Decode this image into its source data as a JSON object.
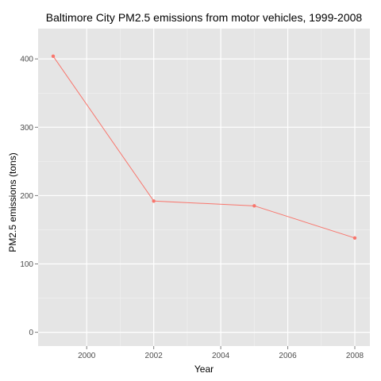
{
  "chart_data": {
    "type": "line",
    "title": "Baltimore City PM2.5 emissions from motor vehicles, 1999-2008",
    "xlabel": "Year",
    "ylabel": "PM2.5 emissions (tons)",
    "x": [
      1999,
      2002,
      2005,
      2008
    ],
    "series": [
      {
        "values": [
          404,
          192,
          185,
          138
        ],
        "color": "#f8766d"
      }
    ],
    "xticks": [
      2000,
      2002,
      2004,
      2006,
      2008
    ],
    "xtick_labels": [
      "2000",
      "2002",
      "2004",
      "2006",
      "2008"
    ],
    "yticks": [
      0,
      100,
      200,
      300,
      400
    ],
    "ytick_labels": [
      "0",
      "100",
      "200",
      "300",
      "400"
    ],
    "xlim": [
      1998.55,
      2008.45
    ],
    "ylim": [
      -20.2,
      444.4
    ],
    "grid": true,
    "legend": "none",
    "panel_color": "#e5e5e5",
    "grid_color": "#ffffff"
  }
}
